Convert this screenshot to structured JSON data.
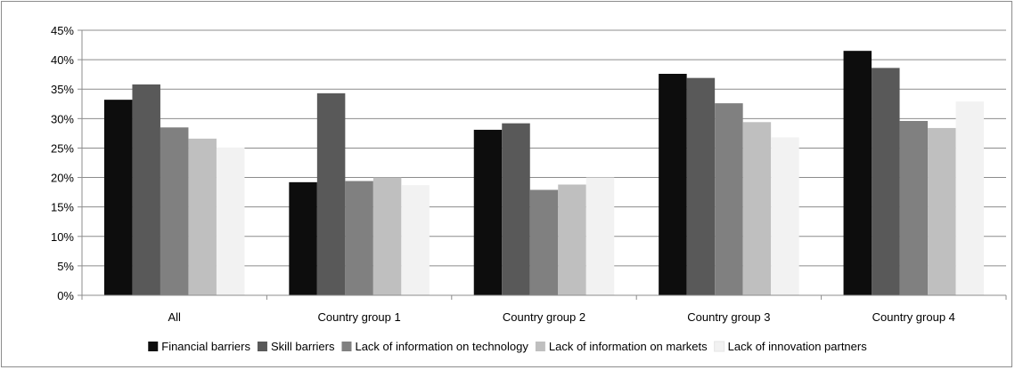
{
  "chart_data": {
    "type": "bar",
    "title": "",
    "xlabel": "",
    "ylabel": "",
    "ylim": [
      0,
      45
    ],
    "y_tick_step": 5,
    "y_tick_suffix": "%",
    "grid": true,
    "legend_position": "bottom",
    "categories": [
      "All",
      "Country group 1",
      "Country group 2",
      "Country group 3",
      "Country group 4"
    ],
    "series": [
      {
        "name": "Financial barriers",
        "color": "#0d0d0d",
        "values": [
          33.2,
          19.2,
          28.1,
          37.6,
          41.5
        ]
      },
      {
        "name": "Skill barriers",
        "color": "#595959",
        "values": [
          35.8,
          34.3,
          29.2,
          36.9,
          38.6
        ]
      },
      {
        "name": "Lack of information on technology",
        "color": "#808080",
        "values": [
          28.5,
          19.4,
          17.9,
          32.6,
          29.6
        ]
      },
      {
        "name": "Lack of information on markets",
        "color": "#bfbfbf",
        "values": [
          26.6,
          20.0,
          18.8,
          29.4,
          28.4
        ]
      },
      {
        "name": "Lack of innovation partners",
        "color": "#f2f2f2",
        "values": [
          25.1,
          18.7,
          20.0,
          26.8,
          32.9
        ]
      }
    ]
  }
}
